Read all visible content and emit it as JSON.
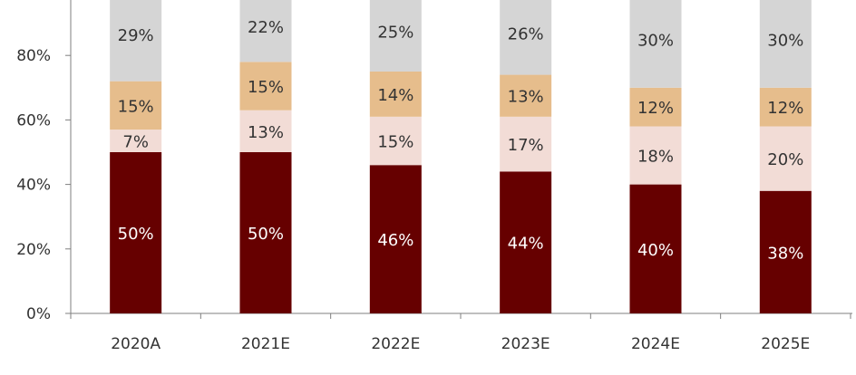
{
  "chart_data": {
    "type": "bar",
    "stacked": true,
    "percent_scale": true,
    "categories": [
      "2020A",
      "2021E",
      "2022E",
      "2023E",
      "2024E",
      "2025E"
    ],
    "series": [
      {
        "values": [
          50,
          50,
          46,
          44,
          40,
          38
        ],
        "labels": [
          "50%",
          "50%",
          "46%",
          "44%",
          "40%",
          "38%"
        ],
        "color": "#660000",
        "label_color": "#ffffff"
      },
      {
        "values": [
          7,
          13,
          15,
          17,
          18,
          20
        ],
        "labels": [
          "7%",
          "13%",
          "15%",
          "17%",
          "18%",
          "20%"
        ],
        "color": "#f2dcd6",
        "label_color": "#333333"
      },
      {
        "values": [
          15,
          15,
          14,
          13,
          12,
          12
        ],
        "labels": [
          "15%",
          "15%",
          "14%",
          "13%",
          "12%",
          "12%"
        ],
        "color": "#e6bd8c",
        "label_color": "#333333"
      },
      {
        "values": [
          29,
          22,
          25,
          26,
          30,
          30
        ],
        "labels": [
          "29%",
          "22%",
          "25%",
          "26%",
          "30%",
          "30%"
        ],
        "color": "#d5d5d5",
        "label_color": "#333333"
      }
    ],
    "yticks": [
      0,
      20,
      40,
      60,
      80
    ],
    "ytick_labels": [
      "0%",
      "20%",
      "40%",
      "60%",
      "80%"
    ],
    "ylim": [
      0,
      100
    ],
    "grid": false,
    "legend": "bottom (cropped)"
  }
}
